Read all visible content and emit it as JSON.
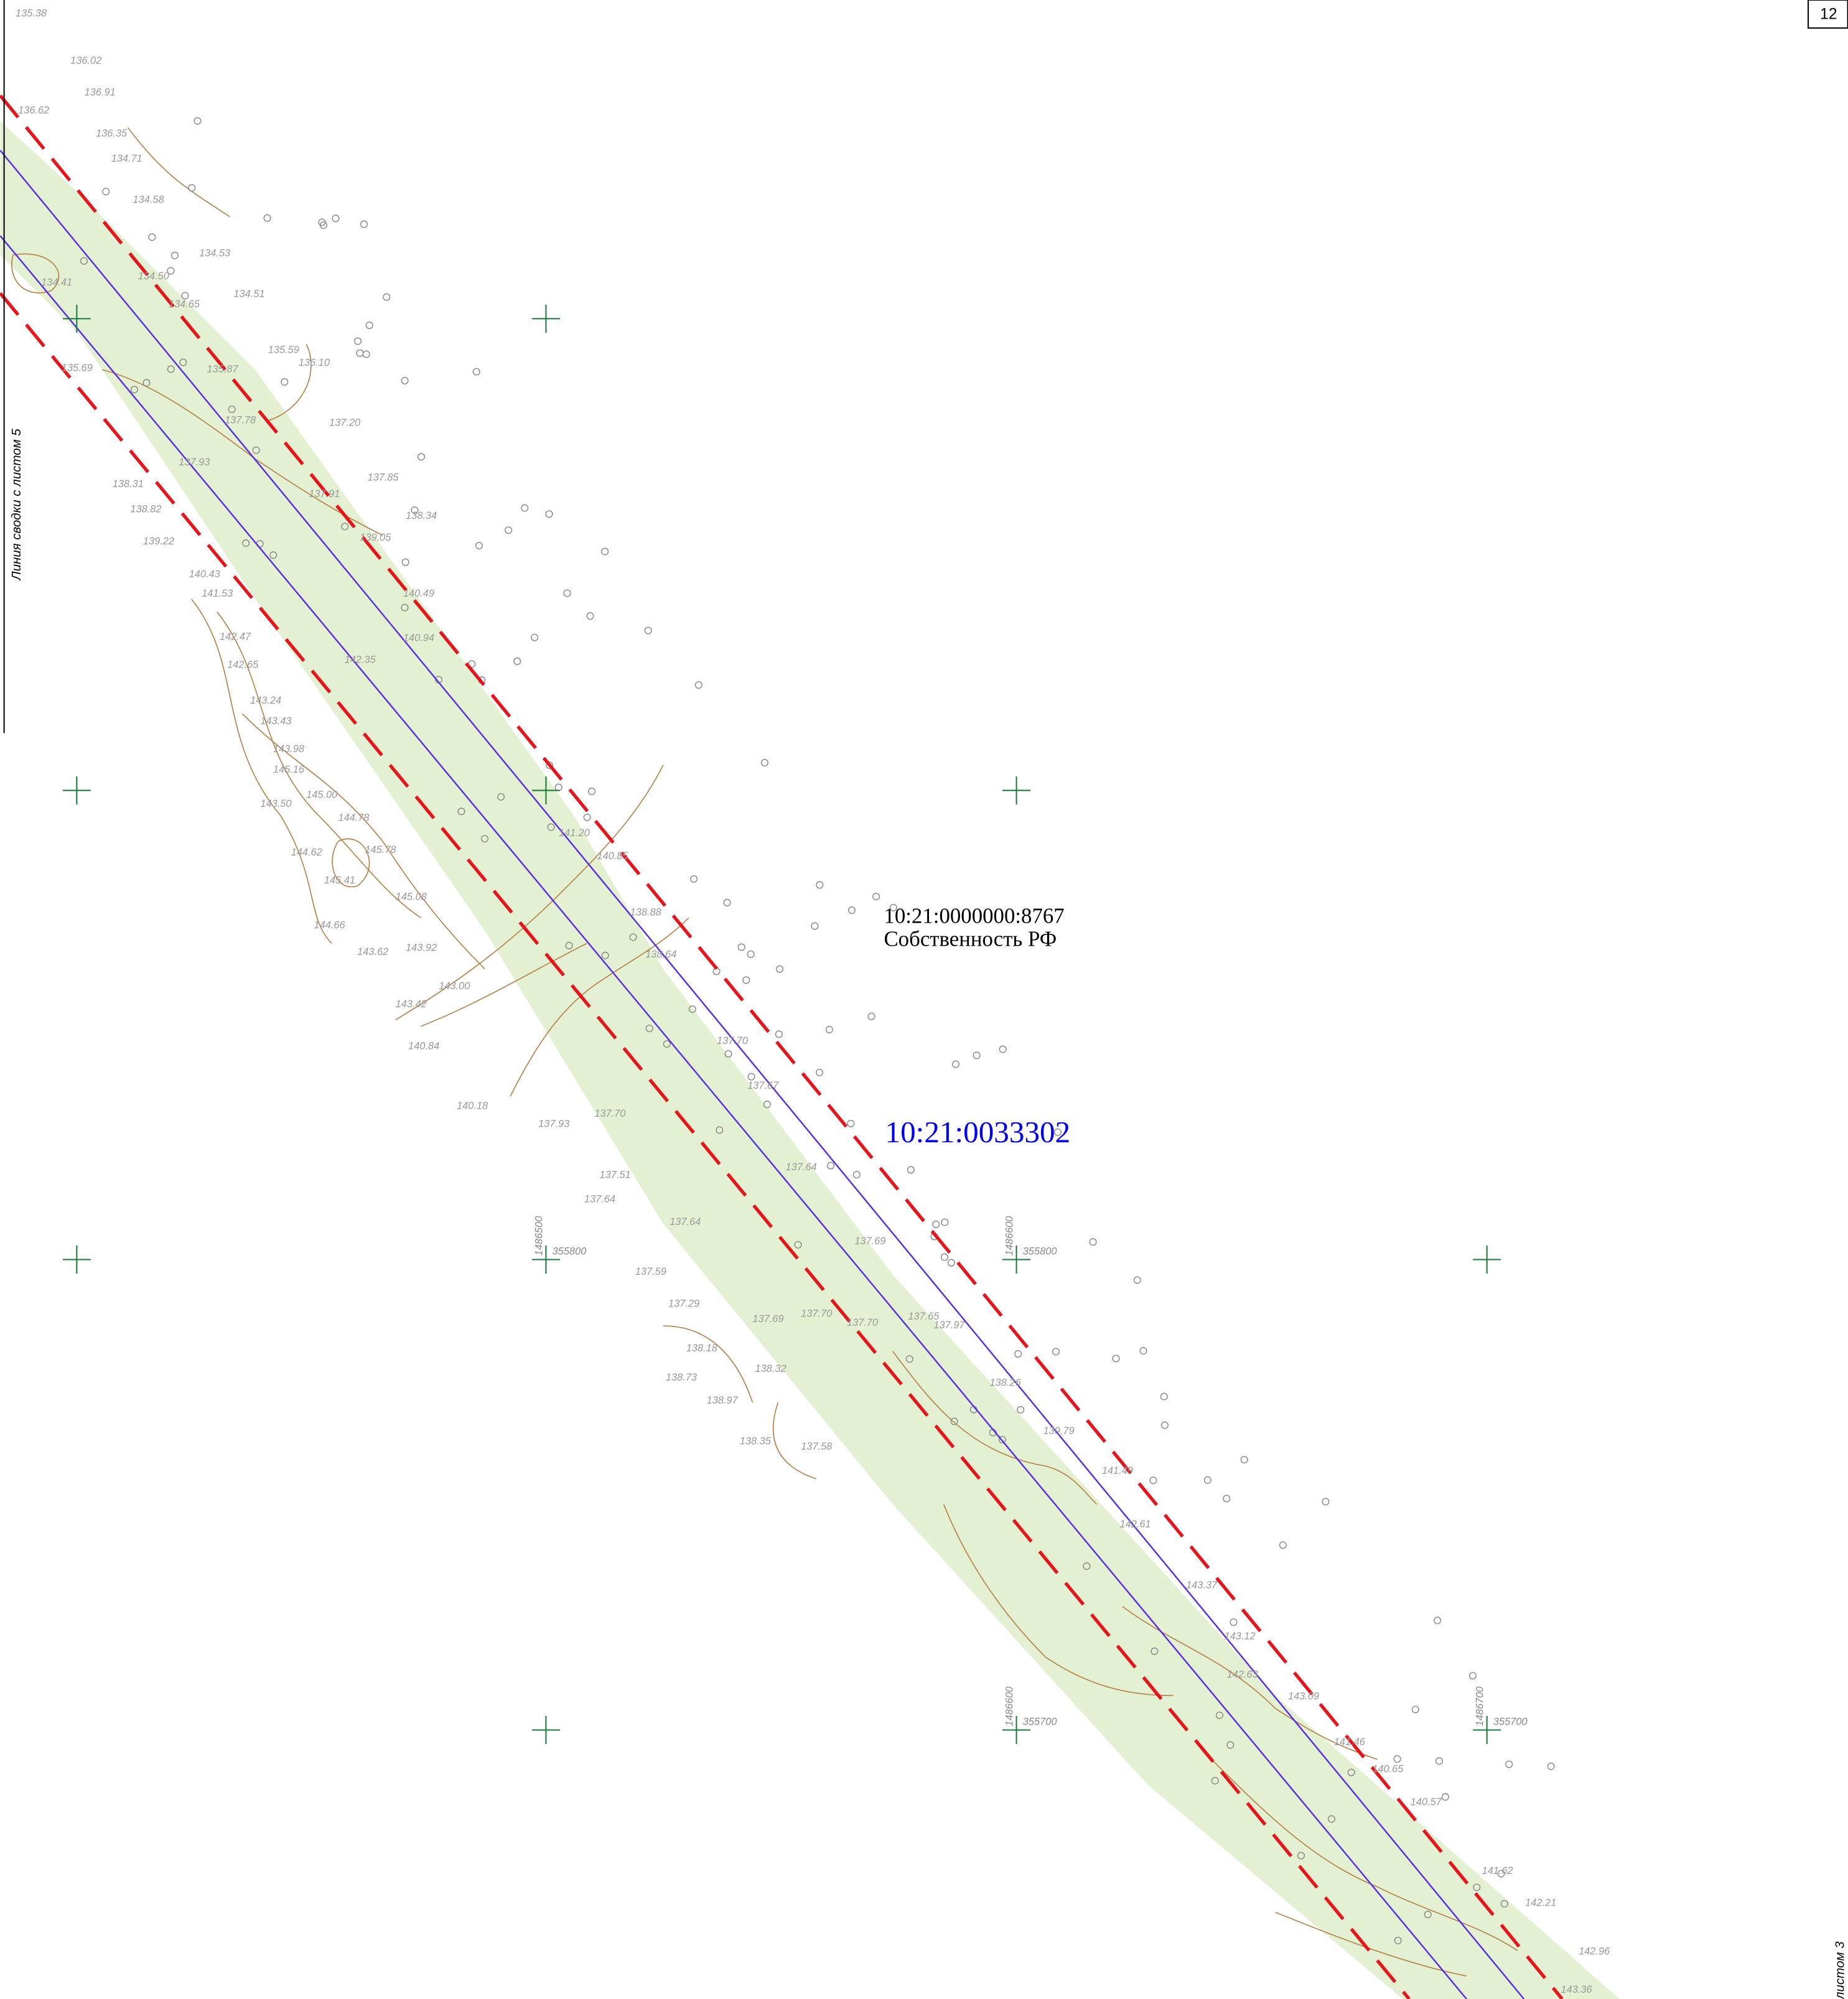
{
  "sheet_number": "12",
  "parcel": {
    "number": "10:21:0000000:8767",
    "owner": "Собственность РФ"
  },
  "block_number": "10:21:0033302",
  "left_note": "Линия сводки с листом 5",
  "right_note": "листом 3",
  "grid_labels": [
    "355800",
    "355800",
    "355700",
    "355700",
    "1486500",
    "1486600",
    "1486600",
    "1486700"
  ],
  "elevations": [
    "135.38",
    "136.02",
    "136.91",
    "136.62",
    "136.35",
    "134.71",
    "134.58",
    "134.53",
    "134.51",
    "134.41",
    "134.50",
    "134.65",
    "135.59",
    "136.10",
    "135.87",
    "135.69",
    "137.20",
    "137.78",
    "137.93",
    "137.85",
    "138.31",
    "137.91",
    "138.34",
    "138.82",
    "139.05",
    "139.22",
    "140.49",
    "140.43",
    "141.53",
    "140.94",
    "142.47",
    "142.65",
    "142.35",
    "143.24",
    "143.43",
    "143.98",
    "145.16",
    "143.50",
    "145.00",
    "144.78",
    "144.62",
    "145.78",
    "145.41",
    "145.08",
    "144.66",
    "143.62",
    "143.92",
    "143.42",
    "143.00",
    "140.84",
    "140.18",
    "137.93",
    "137.70",
    "137.51",
    "137.64",
    "137.59",
    "137.29",
    "138.18",
    "138.73",
    "138.97",
    "138.35",
    "137.58",
    "138.32",
    "137.69",
    "137.70",
    "137.70",
    "137.97",
    "137.65",
    "138.26",
    "139.79",
    "141.49",
    "142.61",
    "143.37",
    "143.12",
    "142.63",
    "143.09",
    "141.46",
    "140.65",
    "140.57",
    "141.62",
    "142.21",
    "142.96",
    "143.36",
    "140.85",
    "141.20",
    "138.88",
    "138.64",
    "137.70",
    "137.67",
    "137.64",
    "137.69",
    "137.64"
  ]
}
